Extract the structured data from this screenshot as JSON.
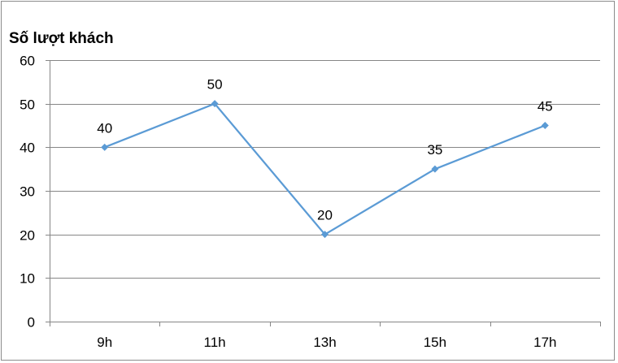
{
  "chart_data": {
    "type": "line",
    "title": "",
    "xlabel": "",
    "ylabel": "Số lượt khách",
    "categories": [
      "9h",
      "11h",
      "13h",
      "15h",
      "17h"
    ],
    "series": [
      {
        "values": [
          40,
          50,
          20,
          35,
          45
        ],
        "color": "#5b9bd5",
        "marker": "diamond"
      }
    ],
    "y_ticks": [
      "0",
      "10",
      "20",
      "30",
      "40",
      "50",
      "60"
    ],
    "ylim": [
      0,
      60
    ],
    "grid": true,
    "legend": "none",
    "data_labels": true
  }
}
